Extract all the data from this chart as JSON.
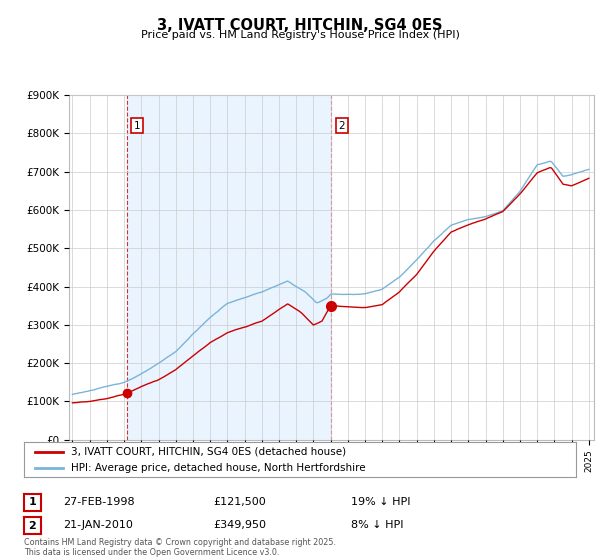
{
  "title": "3, IVATT COURT, HITCHIN, SG4 0ES",
  "subtitle": "Price paid vs. HM Land Registry's House Price Index (HPI)",
  "footer": "Contains HM Land Registry data © Crown copyright and database right 2025.\nThis data is licensed under the Open Government Licence v3.0.",
  "legend_line1": "3, IVATT COURT, HITCHIN, SG4 0ES (detached house)",
  "legend_line2": "HPI: Average price, detached house, North Hertfordshire",
  "purchase1_date": "27-FEB-1998",
  "purchase1_price": "£121,500",
  "purchase1_hpi": "19% ↓ HPI",
  "purchase2_date": "21-JAN-2010",
  "purchase2_price": "£349,950",
  "purchase2_hpi": "8% ↓ HPI",
  "purchase1_year": 1998.15,
  "purchase1_value": 121500,
  "purchase2_year": 2010.05,
  "purchase2_value": 349950,
  "hpi_color": "#7ab4d8",
  "price_color": "#cc0000",
  "shade_color": "#ddeeff",
  "ylim": [
    0,
    900000
  ],
  "yticks": [
    0,
    100000,
    200000,
    300000,
    400000,
    500000,
    600000,
    700000,
    800000,
    900000
  ],
  "ytick_labels": [
    "£0",
    "£100K",
    "£200K",
    "£300K",
    "£400K",
    "£500K",
    "£600K",
    "£700K",
    "£800K",
    "£900K"
  ],
  "xlim_start": 1994.8,
  "xlim_end": 2025.3,
  "background_color": "#ffffff",
  "grid_color": "#cccccc"
}
